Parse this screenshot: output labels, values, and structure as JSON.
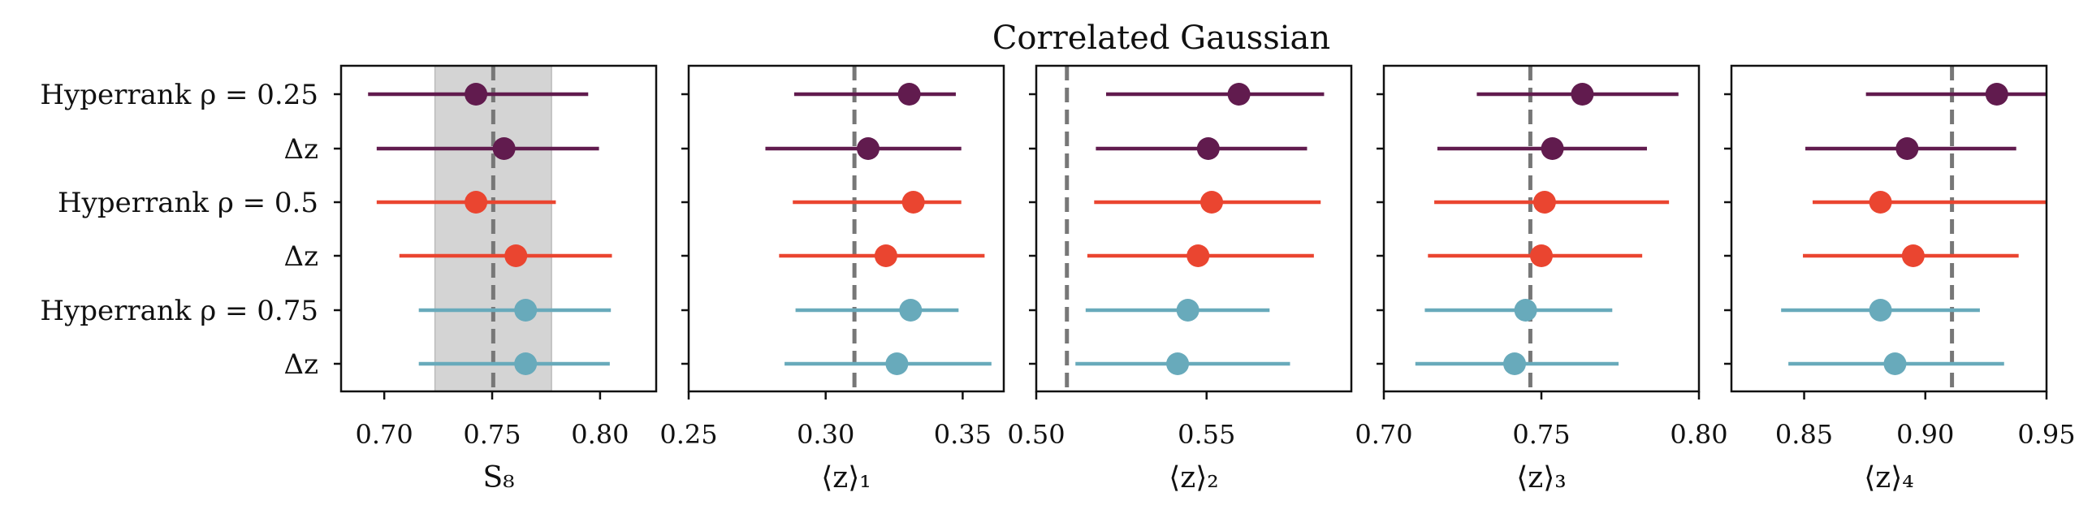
{
  "title": "Correlated Gaussian",
  "colors": {
    "dark_purple": "#611b4e",
    "red": "#ea4530",
    "teal": "#68aabb",
    "reference": "#777777",
    "band": "#d4d4d4"
  },
  "row_labels": [
    "Hyperrank ρ = 0.25",
    "Δz",
    "Hyperrank ρ = 0.5",
    "Δz",
    "Hyperrank ρ = 0.75",
    "Δz"
  ],
  "row_colors": [
    "dark_purple",
    "dark_purple",
    "red",
    "red",
    "teal",
    "teal"
  ],
  "chart_data": [
    {
      "type": "scatter",
      "subtype": "errorbar-forest",
      "xlabel": "S₈",
      "xlim": [
        0.68,
        0.826
      ],
      "xticks": [
        0.7,
        0.75,
        0.8
      ],
      "xtick_labels": [
        "0.70",
        "0.75",
        "0.80"
      ],
      "reference": 0.7505,
      "band": [
        0.7235,
        0.7775
      ],
      "points": [
        {
          "value": 0.7425,
          "low": 0.6925,
          "high": 0.7945
        },
        {
          "value": 0.7555,
          "low": 0.6965,
          "high": 0.7995
        },
        {
          "value": 0.7425,
          "low": 0.6965,
          "high": 0.7795
        },
        {
          "value": 0.761,
          "low": 0.707,
          "high": 0.8055
        },
        {
          "value": 0.7655,
          "low": 0.716,
          "high": 0.805
        },
        {
          "value": 0.7655,
          "low": 0.716,
          "high": 0.8045
        }
      ]
    },
    {
      "type": "scatter",
      "subtype": "errorbar-forest",
      "xlabel": "⟨z⟩₁",
      "xlim": [
        0.25,
        0.365
      ],
      "xticks": [
        0.25,
        0.3,
        0.35
      ],
      "xtick_labels": [
        "0.25",
        "0.30",
        "0.35"
      ],
      "reference": 0.3105,
      "points": [
        {
          "value": 0.3305,
          "low": 0.2885,
          "high": 0.3475
        },
        {
          "value": 0.3155,
          "low": 0.278,
          "high": 0.3495
        },
        {
          "value": 0.332,
          "low": 0.288,
          "high": 0.3495
        },
        {
          "value": 0.322,
          "low": 0.283,
          "high": 0.358
        },
        {
          "value": 0.331,
          "low": 0.289,
          "high": 0.3485
        },
        {
          "value": 0.326,
          "low": 0.285,
          "high": 0.3605
        }
      ]
    },
    {
      "type": "scatter",
      "subtype": "errorbar-forest",
      "xlabel": "⟨z⟩₂",
      "xlim": [
        0.5,
        0.5925
      ],
      "xticks": [
        0.5,
        0.55
      ],
      "xtick_labels": [
        "0.50",
        "0.55"
      ],
      "reference": 0.509,
      "points": [
        {
          "value": 0.5595,
          "low": 0.5205,
          "high": 0.5845
        },
        {
          "value": 0.5505,
          "low": 0.5175,
          "high": 0.5795
        },
        {
          "value": 0.5515,
          "low": 0.517,
          "high": 0.5835
        },
        {
          "value": 0.5475,
          "low": 0.515,
          "high": 0.5815
        },
        {
          "value": 0.5445,
          "low": 0.5145,
          "high": 0.5685
        },
        {
          "value": 0.5415,
          "low": 0.5115,
          "high": 0.5745
        }
      ]
    },
    {
      "type": "scatter",
      "subtype": "errorbar-forest",
      "xlabel": "⟨z⟩₃",
      "xlim": [
        0.7,
        0.8
      ],
      "xticks": [
        0.7,
        0.75,
        0.8
      ],
      "xtick_labels": [
        "0.70",
        "0.75",
        "0.80"
      ],
      "reference": 0.7465,
      "points": [
        {
          "value": 0.763,
          "low": 0.7295,
          "high": 0.7935
        },
        {
          "value": 0.7535,
          "low": 0.717,
          "high": 0.7835
        },
        {
          "value": 0.751,
          "low": 0.716,
          "high": 0.7905
        },
        {
          "value": 0.75,
          "low": 0.714,
          "high": 0.782
        },
        {
          "value": 0.745,
          "low": 0.713,
          "high": 0.7725
        },
        {
          "value": 0.7415,
          "low": 0.71,
          "high": 0.7745
        }
      ]
    },
    {
      "type": "scatter",
      "subtype": "errorbar-forest",
      "xlabel": "⟨z⟩₄",
      "xlim": [
        0.82,
        0.95
      ],
      "xticks": [
        0.85,
        0.9,
        0.95
      ],
      "xtick_labels": [
        "0.85",
        "0.90",
        "0.95"
      ],
      "reference": 0.911,
      "points": [
        {
          "value": 0.9295,
          "low": 0.8755,
          "high": 0.95
        },
        {
          "value": 0.8925,
          "low": 0.8505,
          "high": 0.9375
        },
        {
          "value": 0.8815,
          "low": 0.8535,
          "high": 0.95
        },
        {
          "value": 0.895,
          "low": 0.8495,
          "high": 0.9385
        },
        {
          "value": 0.8815,
          "low": 0.8405,
          "high": 0.9225
        },
        {
          "value": 0.8875,
          "low": 0.8435,
          "high": 0.9325
        }
      ]
    }
  ]
}
